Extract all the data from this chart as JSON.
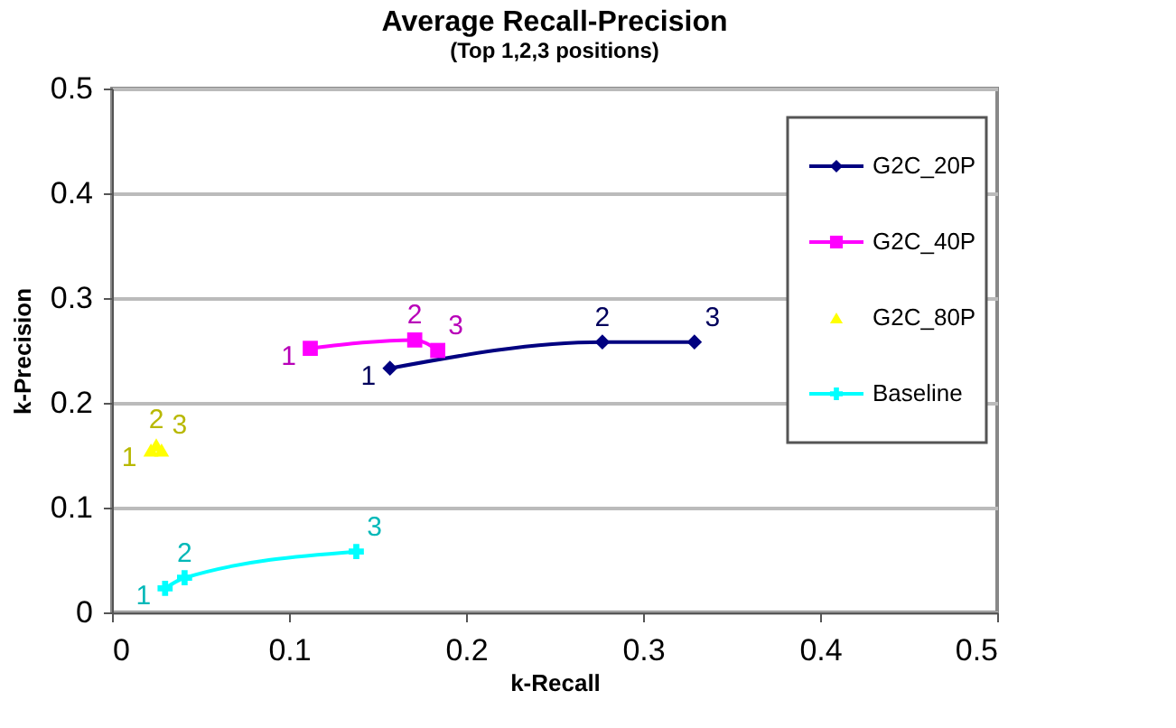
{
  "chart_data": {
    "type": "line",
    "title": "Average Recall-Precision",
    "subtitle": "(Top 1,2,3 positions)",
    "xlabel": "k-Recall",
    "ylabel": "k-Precision",
    "xlim": [
      0,
      0.5
    ],
    "xticks": [
      0,
      0.1,
      0.2,
      0.3,
      0.4,
      0.5
    ],
    "ylim": [
      0,
      0.5
    ],
    "yticks": [
      0,
      0.1,
      0.2,
      0.3,
      0.4,
      0.5
    ],
    "grid": "y",
    "legend": "right",
    "series": [
      {
        "name": "G2C_20P",
        "color": "#000080",
        "marker": "diamond",
        "x": [
          0.157,
          0.277,
          0.329
        ],
        "values": [
          0.233,
          0.258,
          0.258
        ]
      },
      {
        "name": "G2C_40P",
        "color": "#ff00ff",
        "marker": "square",
        "x": [
          0.112,
          0.171,
          0.184
        ],
        "values": [
          0.252,
          0.26,
          0.25
        ]
      },
      {
        "name": "G2C_80P",
        "type": "scatter",
        "color": "#ffff00",
        "marker": "triangle",
        "x": [
          0.022,
          0.025,
          0.028
        ],
        "values": [
          0.155,
          0.16,
          0.155
        ]
      },
      {
        "name": "Baseline",
        "color": "#00ffff",
        "marker": "cross",
        "x": [
          0.03,
          0.041,
          0.138
        ],
        "values": [
          0.023,
          0.033,
          0.058
        ]
      }
    ],
    "annotations": [
      {
        "text": "1",
        "x": 0.157,
        "y": 0.233
      },
      {
        "text": "2",
        "x": 0.277,
        "y": 0.258
      },
      {
        "text": "3",
        "x": 0.329,
        "y": 0.258
      },
      {
        "text": "1",
        "x": 0.112,
        "y": 0.252
      },
      {
        "text": "2",
        "x": 0.171,
        "y": 0.26
      },
      {
        "text": "3",
        "x": 0.184,
        "y": 0.25
      },
      {
        "text": "1",
        "x": 0.022,
        "y": 0.155
      },
      {
        "text": "2",
        "x": 0.025,
        "y": 0.16
      },
      {
        "text": "3",
        "x": 0.028,
        "y": 0.155
      },
      {
        "text": "1",
        "x": 0.03,
        "y": 0.023
      },
      {
        "text": "2",
        "x": 0.041,
        "y": 0.033
      },
      {
        "text": "3",
        "x": 0.138,
        "y": 0.058
      }
    ]
  }
}
